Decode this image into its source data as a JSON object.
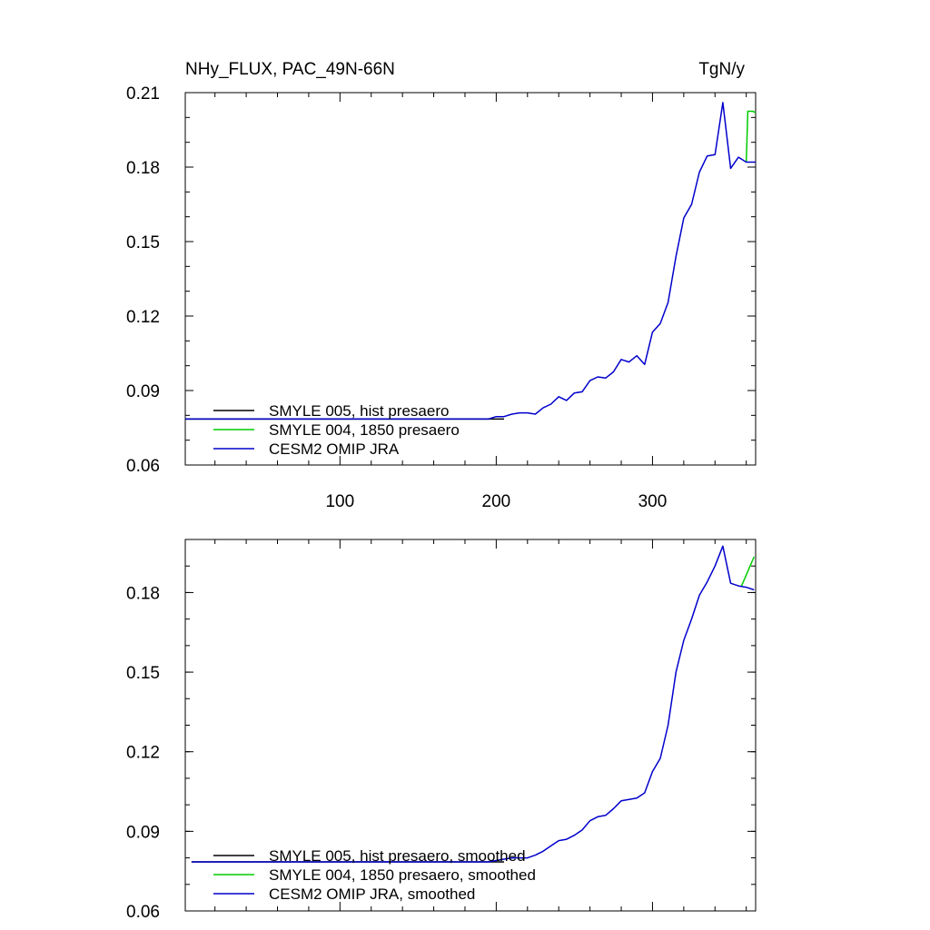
{
  "chart_data": [
    {
      "type": "line",
      "title_left": "NHy_FLUX, PAC_49N-66N",
      "title_right": "TgN/y",
      "xlim": [
        1,
        366
      ],
      "ylim": [
        0.06,
        0.21
      ],
      "xticks": [
        100,
        200,
        300
      ],
      "yticks": [
        0.06,
        0.09,
        0.12,
        0.15,
        0.18,
        0.21
      ],
      "ytick_labels": [
        "0.06",
        "0.09",
        "0.12",
        "0.15",
        "0.18",
        "0.21"
      ],
      "xtick_labels": [
        "100",
        "200",
        "300"
      ],
      "legend_position": "bottom-left",
      "series": [
        {
          "name": "SMYLE 005, hist presaero",
          "color": "#000000",
          "x": [
            1,
            30,
            60,
            90,
            120,
            150,
            180,
            200,
            205
          ],
          "y": [
            0.0785,
            0.0785,
            0.0785,
            0.0785,
            0.0785,
            0.0785,
            0.0785,
            0.0785,
            0.0785
          ]
        },
        {
          "name": "SMYLE 004, 1850 presaero",
          "color": "#00cc00",
          "x": [
            360,
            361,
            362,
            364,
            366
          ],
          "y": [
            0.182,
            0.2025,
            0.2025,
            0.2025,
            0.202
          ]
        },
        {
          "name": "CESM2 OMIP JRA",
          "color": "#0000cc",
          "x": [
            1,
            50,
            100,
            150,
            195,
            200,
            205,
            210,
            215,
            220,
            225,
            230,
            235,
            240,
            245,
            250,
            255,
            260,
            265,
            270,
            275,
            280,
            285,
            290,
            295,
            300,
            305,
            310,
            315,
            320,
            325,
            330,
            335,
            340,
            345,
            350,
            355,
            360,
            366
          ],
          "y": [
            0.0785,
            0.0785,
            0.0785,
            0.0785,
            0.0785,
            0.0795,
            0.0795,
            0.0805,
            0.081,
            0.081,
            0.0805,
            0.083,
            0.0845,
            0.0875,
            0.086,
            0.089,
            0.0895,
            0.094,
            0.0955,
            0.095,
            0.0975,
            0.1025,
            0.1015,
            0.104,
            0.1005,
            0.1135,
            0.117,
            0.1255,
            0.144,
            0.1595,
            0.165,
            0.178,
            0.1845,
            0.185,
            0.206,
            0.1795,
            0.184,
            0.182,
            0.182
          ]
        }
      ]
    },
    {
      "type": "line",
      "xlim": [
        1,
        366
      ],
      "ylim": [
        0.06,
        0.2
      ],
      "yticks": [
        0.06,
        0.09,
        0.12,
        0.15,
        0.18
      ],
      "ytick_labels": [
        "0.06",
        "0.09",
        "0.12",
        "0.15",
        "0.18"
      ],
      "xticks": [
        100,
        200,
        300
      ],
      "legend_position": "bottom-left",
      "series": [
        {
          "name": "SMYLE 005, hist presaero, smoothed",
          "color": "#000000",
          "x": [
            5,
            50,
            100,
            150,
            200,
            205
          ],
          "y": [
            0.0785,
            0.0785,
            0.0785,
            0.0785,
            0.0785,
            0.0785
          ]
        },
        {
          "name": "SMYLE 004, 1850 presaero, smoothed",
          "color": "#00cc00",
          "x": [
            357,
            361,
            365
          ],
          "y": [
            0.1825,
            0.188,
            0.1935
          ]
        },
        {
          "name": "CESM2 OMIP JRA, smoothed",
          "color": "#0000cc",
          "x": [
            5,
            50,
            100,
            150,
            195,
            200,
            205,
            210,
            215,
            220,
            225,
            230,
            235,
            240,
            245,
            250,
            255,
            260,
            265,
            270,
            275,
            280,
            285,
            290,
            295,
            300,
            305,
            310,
            315,
            320,
            325,
            330,
            335,
            340,
            345,
            350,
            355,
            360,
            365
          ],
          "y": [
            0.0785,
            0.0785,
            0.0785,
            0.0785,
            0.0785,
            0.079,
            0.0795,
            0.08,
            0.08,
            0.08,
            0.081,
            0.0825,
            0.0845,
            0.0865,
            0.087,
            0.0885,
            0.0905,
            0.094,
            0.0955,
            0.096,
            0.0985,
            0.1015,
            0.102,
            0.1025,
            0.1045,
            0.1125,
            0.1175,
            0.13,
            0.15,
            0.162,
            0.17,
            0.179,
            0.184,
            0.19,
            0.1975,
            0.1835,
            0.1825,
            0.182,
            0.181
          ]
        }
      ]
    }
  ]
}
